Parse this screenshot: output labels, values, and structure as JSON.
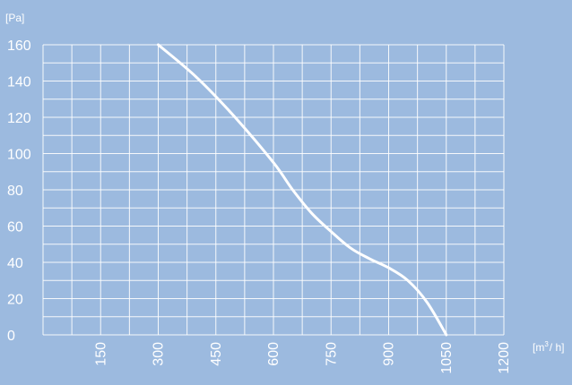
{
  "colors": {
    "background": "#9cbadf",
    "grid": "#ffffff",
    "curve": "#ffffff",
    "text": "#ffffff"
  },
  "chart_data": {
    "type": "line",
    "title": "",
    "ylabel": "[Pa]",
    "xlabel": "[m³/h]",
    "xlabel_parts": {
      "open": "[m",
      "sup": "3",
      "rest": "/ h]"
    },
    "xlim": [
      0,
      1200
    ],
    "ylim": [
      0,
      160
    ],
    "x_ticks": [
      "150",
      "300",
      "450",
      "600",
      "750",
      "900",
      "1050",
      "1200"
    ],
    "x_tick_values": [
      150,
      300,
      450,
      600,
      750,
      900,
      1050,
      1200
    ],
    "y_ticks": [
      "0",
      "20",
      "40",
      "60",
      "80",
      "100",
      "120",
      "140",
      "160"
    ],
    "y_tick_values": [
      0,
      20,
      40,
      60,
      80,
      100,
      120,
      140,
      160
    ],
    "grid": true,
    "legend": "none",
    "series": [
      {
        "x": [
          300,
          400,
          500,
          600,
          650,
          700,
          750,
          800,
          850,
          900,
          950,
          1000,
          1050
        ],
        "y": [
          160,
          142,
          120,
          95,
          80,
          67,
          57,
          48,
          42,
          37,
          30,
          18,
          0
        ]
      }
    ]
  }
}
